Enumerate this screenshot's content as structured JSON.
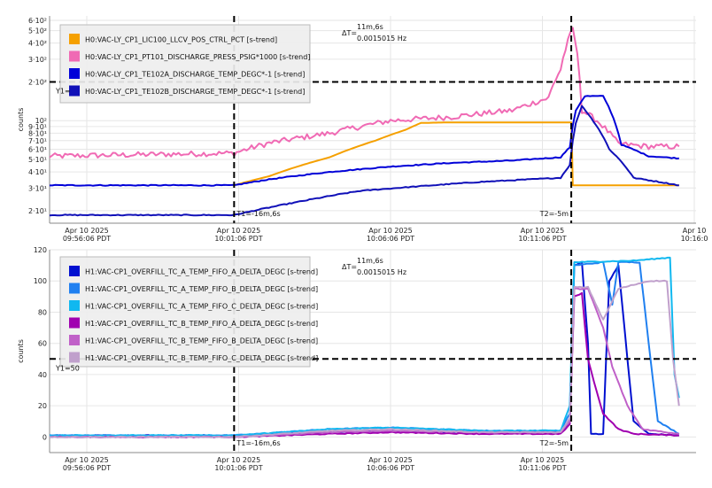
{
  "chart_data": [
    {
      "type": "line",
      "ylabel": "counts",
      "yscale": "log",
      "ylim": [
        16,
        650
      ],
      "xlim_min": [
        -11.3,
        21.5
      ],
      "x_ticks": [
        {
          "min": -10,
          "line1": "Apr 10 2025",
          "line2": "09:56:06 PDT"
        },
        {
          "min": -5,
          "line1": "Apr 10 2025",
          "line2": "10:01:06 PDT"
        },
        {
          "min": 0,
          "line1": "Apr 10 2025",
          "line2": "10:06:06 PDT"
        },
        {
          "min": 5,
          "line1": "Apr 10 2025",
          "line2": "10:11:06 PDT"
        },
        {
          "min": 10,
          "line1": "Apr 10",
          "line2": "10:16:0"
        }
      ],
      "y_ticks": [
        {
          "v": 20,
          "label": "2·10¹"
        },
        {
          "v": 30,
          "label": "3·10¹"
        },
        {
          "v": 40,
          "label": "4·10¹"
        },
        {
          "v": 50,
          "label": "5·10¹"
        },
        {
          "v": 60,
          "label": "6·10¹"
        },
        {
          "v": 70,
          "label": "7·10¹"
        },
        {
          "v": 80,
          "label": "8·10¹"
        },
        {
          "v": 90,
          "label": "9·10¹"
        },
        {
          "v": 100,
          "label": "10²"
        },
        {
          "v": 200,
          "label": "2·10²"
        },
        {
          "v": 300,
          "label": "3·10²"
        },
        {
          "v": 400,
          "label": "4·10²"
        },
        {
          "v": 500,
          "label": "5·10²"
        },
        {
          "v": 600,
          "label": "6·10²"
        }
      ],
      "cursor": {
        "t1_min": -5.15,
        "t2_min": 5.95,
        "y1": 200,
        "t1_label": "T1=-16m,6s",
        "t2_label": "T2=-5m",
        "y1_label": "Y1=",
        "dt_label": "ΔT=",
        "dt_value": "11m,6s",
        "freq": "0.0015015 Hz"
      },
      "series": [
        {
          "name": "H0:VAC-LY_CP1_LIC100_LLCV_POS_CTRL_PCT [s-trend]",
          "color": "#f5a000",
          "noise": 0,
          "points": [
            [
              -5.15,
              31.5
            ],
            [
              -4,
              37
            ],
            [
              -2,
              52
            ],
            [
              -0.5,
              70
            ],
            [
              0.5,
              85
            ],
            [
              1,
              96
            ],
            [
              2,
              97
            ],
            [
              5.95,
              97
            ],
            [
              6,
              31.5
            ],
            [
              9.5,
              31.5
            ]
          ]
        },
        {
          "name": "H0:VAC-LY_CP1_PT101_DISCHARGE_PRESS_PSIG*1000 [s-trend]",
          "color": "#f06ab4",
          "noise": 0.05,
          "points": [
            [
              -11.3,
              53
            ],
            [
              -5.15,
              56
            ],
            [
              -4,
              67
            ],
            [
              -2,
              80
            ],
            [
              0,
              100
            ],
            [
              2,
              107
            ],
            [
              4,
              120
            ],
            [
              5.2,
              150
            ],
            [
              5.6,
              250
            ],
            [
              6,
              520
            ],
            [
              6.3,
              120
            ],
            [
              6.8,
              100
            ],
            [
              7.5,
              66
            ],
            [
              8.5,
              63
            ],
            [
              9.5,
              63
            ]
          ]
        },
        {
          "name": "H0:VAC-LY_CP1_TE102A_DISCHARGE_TEMP_DEGC*-1 [s-trend]",
          "color": "#0000d8",
          "noise": 0.008,
          "points": [
            [
              -11.3,
              31.5
            ],
            [
              -5.15,
              31.5
            ],
            [
              -4,
              35
            ],
            [
              -2,
              40
            ],
            [
              0,
              44
            ],
            [
              2,
              47
            ],
            [
              4,
              49
            ],
            [
              5.6,
              52
            ],
            [
              5.9,
              62
            ],
            [
              6.1,
              120
            ],
            [
              6.4,
              155
            ],
            [
              7,
              155
            ],
            [
              7.6,
              65
            ],
            [
              8.5,
              53
            ],
            [
              9.5,
              51
            ]
          ]
        },
        {
          "name": "H0:VAC-LY_CP1_TE102B_DISCHARGE_TEMP_DEGC*-1 [s-trend]",
          "color": "#1010b8",
          "noise": 0.008,
          "points": [
            [
              -11.3,
              18.5
            ],
            [
              -5.15,
              18.5
            ],
            [
              -4.5,
              20
            ],
            [
              -3,
              23.5
            ],
            [
              -1,
              28.5
            ],
            [
              1,
              31
            ],
            [
              3,
              33.5
            ],
            [
              5.6,
              36
            ],
            [
              5.9,
              45
            ],
            [
              6.1,
              95
            ],
            [
              6.3,
              130
            ],
            [
              6.6,
              105
            ],
            [
              7.2,
              60
            ],
            [
              8,
              36
            ],
            [
              9.5,
              31.5
            ]
          ]
        }
      ]
    },
    {
      "type": "line",
      "ylabel": "counts",
      "ylim": [
        -10,
        120
      ],
      "xlim_min": [
        -11.3,
        21.5
      ],
      "x_ticks": [
        {
          "min": -10,
          "line1": "Apr 10 2025",
          "line2": "09:56:06 PDT"
        },
        {
          "min": -5,
          "line1": "Apr 10 2025",
          "line2": "10:01:06 PDT"
        },
        {
          "min": 0,
          "line1": "Apr 10 2025",
          "line2": "10:06:06 PDT"
        },
        {
          "min": 5,
          "line1": "Apr 10 2025",
          "line2": "10:11:06 PDT"
        }
      ],
      "y_ticks": [
        {
          "v": 0,
          "label": "0"
        },
        {
          "v": 20,
          "label": "20"
        },
        {
          "v": 40,
          "label": "40"
        },
        {
          "v": 60,
          "label": "60"
        },
        {
          "v": 80,
          "label": "80"
        },
        {
          "v": 100,
          "label": "100"
        },
        {
          "v": 120,
          "label": "120"
        }
      ],
      "cursor": {
        "t1_min": -5.15,
        "t2_min": 5.95,
        "y1": 50,
        "t1_label": "T1=-16m,6s",
        "t2_label": "T2=-5m",
        "y1_label": "Y1=50",
        "dt_label": "ΔT=",
        "dt_value": "11m,6s",
        "freq": "0.0015015 Hz"
      },
      "series": [
        {
          "name": "H1:VAC-CP1_OVERFILL_TC_A_TEMP_FIFO_A_DELTA_DEGC [s-trend]",
          "color": "#0010d0",
          "noise": 0.3,
          "points": [
            [
              -11.3,
              1
            ],
            [
              -5.15,
              1
            ],
            [
              -2,
              3
            ],
            [
              0,
              4
            ],
            [
              3,
              3
            ],
            [
              5.6,
              3
            ],
            [
              5.9,
              10
            ],
            [
              6.05,
              110
            ],
            [
              6.3,
              112
            ],
            [
              6.5,
              60
            ],
            [
              6.6,
              2
            ],
            [
              7,
              2
            ],
            [
              7.2,
              100
            ],
            [
              7.5,
              110
            ],
            [
              7.8,
              50
            ],
            [
              8,
              10
            ],
            [
              8.5,
              2
            ],
            [
              9.5,
              1
            ]
          ]
        },
        {
          "name": "H1:VAC-CP1_OVERFILL_TC_A_TEMP_FIFO_B_DELTA_DEGC [s-trend]",
          "color": "#2080f0",
          "noise": 0.3,
          "points": [
            [
              -11.3,
              1
            ],
            [
              -5.15,
              1
            ],
            [
              -2,
              5
            ],
            [
              0,
              6
            ],
            [
              3,
              4
            ],
            [
              5.6,
              4
            ],
            [
              5.9,
              15
            ],
            [
              6.05,
              110
            ],
            [
              7,
              112
            ],
            [
              7.3,
              85
            ],
            [
              7.5,
              112
            ],
            [
              8.2,
              112
            ],
            [
              8.5,
              60
            ],
            [
              8.8,
              10
            ],
            [
              9.5,
              2
            ]
          ]
        },
        {
          "name": "H1:VAC-CP1_OVERFILL_TC_A_TEMP_FIFO_C_DELTA_DEGC [s-trend]",
          "color": "#10b8f0",
          "noise": 0.3,
          "points": [
            [
              -11.3,
              1
            ],
            [
              -5.15,
              1
            ],
            [
              -2,
              5
            ],
            [
              0,
              6
            ],
            [
              3,
              4
            ],
            [
              5.6,
              4
            ],
            [
              5.9,
              20
            ],
            [
              6.05,
              112
            ],
            [
              8,
              113
            ],
            [
              9.2,
              115
            ],
            [
              9.35,
              40
            ],
            [
              9.5,
              25
            ]
          ]
        },
        {
          "name": "H1:VAC-CP1_OVERFILL_TC_B_TEMP_FIFO_A_DELTA_DEGC [s-trend]",
          "color": "#a000b0",
          "noise": 0.3,
          "points": [
            [
              -11.3,
              0
            ],
            [
              -5.15,
              0
            ],
            [
              -2,
              2
            ],
            [
              0,
              3
            ],
            [
              3,
              2
            ],
            [
              5.6,
              2
            ],
            [
              5.9,
              8
            ],
            [
              6.05,
              90
            ],
            [
              6.3,
              92
            ],
            [
              6.5,
              50
            ],
            [
              6.7,
              35
            ],
            [
              7,
              15
            ],
            [
              7.5,
              5
            ],
            [
              8,
              2
            ],
            [
              9.5,
              1
            ]
          ]
        },
        {
          "name": "H1:VAC-CP1_OVERFILL_TC_B_TEMP_FIFO_B_DELTA_DEGC [s-trend]",
          "color": "#c060c8",
          "noise": 0.3,
          "points": [
            [
              -11.3,
              0
            ],
            [
              -5.15,
              0
            ],
            [
              -2,
              3
            ],
            [
              0,
              4
            ],
            [
              3,
              3
            ],
            [
              5.6,
              3
            ],
            [
              5.9,
              10
            ],
            [
              6.05,
              95
            ],
            [
              6.5,
              95
            ],
            [
              7,
              70
            ],
            [
              7.3,
              45
            ],
            [
              7.8,
              20
            ],
            [
              8.3,
              5
            ],
            [
              9.5,
              2
            ]
          ]
        },
        {
          "name": "H1:VAC-CP1_OVERFILL_TC_B_TEMP_FIFO_C_DELTA_DEGC [s-trend]",
          "color": "#c0a0cc",
          "noise": 0.3,
          "points": [
            [
              -11.3,
              0
            ],
            [
              -5.15,
              0
            ],
            [
              -2,
              4
            ],
            [
              0,
              5
            ],
            [
              3,
              3
            ],
            [
              5.6,
              3
            ],
            [
              5.9,
              12
            ],
            [
              6.05,
              96
            ],
            [
              6.5,
              96
            ],
            [
              7,
              75
            ],
            [
              7.5,
              95
            ],
            [
              8.5,
              100
            ],
            [
              9.1,
              100
            ],
            [
              9.3,
              50
            ],
            [
              9.5,
              20
            ]
          ]
        }
      ]
    }
  ]
}
